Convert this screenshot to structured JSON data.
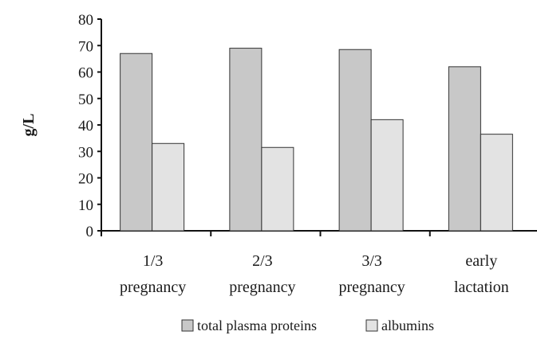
{
  "chart_data": {
    "type": "bar",
    "categories": [
      [
        "1/3",
        "pregnancy"
      ],
      [
        "2/3",
        "pregnancy"
      ],
      [
        "3/3",
        "pregnancy"
      ],
      [
        "early",
        "lactation"
      ]
    ],
    "series": [
      {
        "name": "total plasma proteins",
        "values": [
          67,
          69,
          68.5,
          62
        ],
        "color": "#c8c8c8"
      },
      {
        "name": "albumins",
        "values": [
          33,
          31.5,
          42,
          36.5
        ],
        "color": "#e3e3e3"
      }
    ],
    "ylabel": "g/L",
    "xlabel": "",
    "title": "",
    "ylim": [
      0,
      80
    ],
    "yticks": [
      "0",
      "10",
      "20",
      "30",
      "40",
      "50",
      "60",
      "70",
      "80"
    ],
    "grid": false,
    "legend_position": "bottom"
  }
}
